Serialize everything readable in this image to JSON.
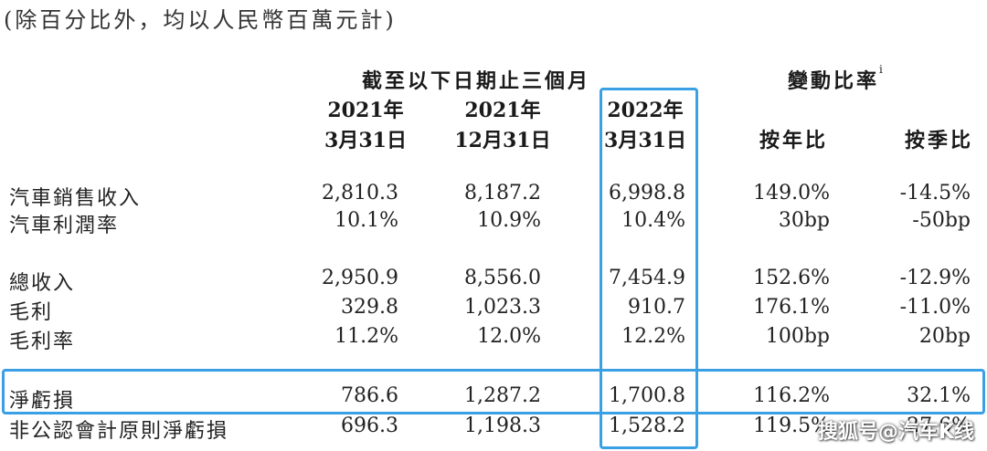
{
  "note": "(除百分比外，均以人民幣百萬元計)",
  "headers": {
    "period_group": "截至以下日期止三個月",
    "change_group": "變動比率",
    "change_group_sup": "i",
    "col1_year": "2021年",
    "col1_date": "3月31日",
    "col2_year": "2021年",
    "col2_date": "12月31日",
    "col3_year": "2022年",
    "col3_date": "3月31日",
    "yoy": "按年比",
    "qoq": "按季比"
  },
  "rows": [
    {
      "label": "汽車銷售收入",
      "c1": "2,810.3",
      "c2": "8,187.2",
      "c3": "6,998.8",
      "yoy": "149.0%",
      "qoq": "-14.5%"
    },
    {
      "label": "汽車利潤率",
      "c1": "10.1%",
      "c2": "10.9%",
      "c3": "10.4%",
      "yoy": "30bp",
      "qoq": "-50bp"
    },
    {
      "label": "總收入",
      "c1": "2,950.9",
      "c2": "8,556.0",
      "c3": "7,454.9",
      "yoy": "152.6%",
      "qoq": "-12.9%"
    },
    {
      "label": "毛利",
      "c1": "329.8",
      "c2": "1,023.3",
      "c3": "910.7",
      "yoy": "176.1%",
      "qoq": "-11.0%"
    },
    {
      "label": "毛利率",
      "c1": "11.2%",
      "c2": "12.0%",
      "c3": "12.2%",
      "yoy": "100bp",
      "qoq": "20bp"
    },
    {
      "label": "淨虧損",
      "c1": "786.6",
      "c2": "1,287.2",
      "c3": "1,700.8",
      "yoy": "116.2%",
      "qoq": "32.1%"
    },
    {
      "label": "非公認會計原則淨虧損",
      "c1": "696.3",
      "c2": "1,198.3",
      "c3": "1,528.2",
      "yoy": "119.5%",
      "qoq": "27.6%"
    }
  ],
  "watermark": "搜狐号@汽车K线",
  "highlight_color": "#3aa0e6"
}
